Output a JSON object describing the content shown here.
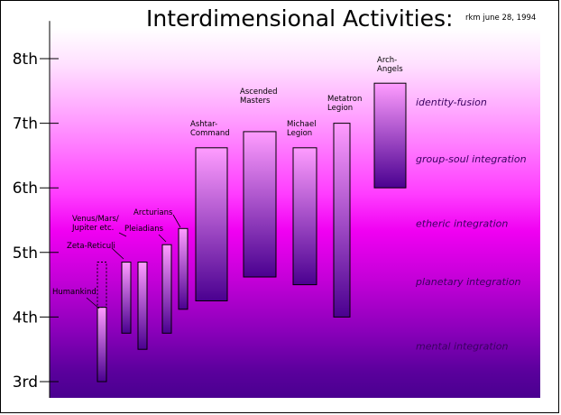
{
  "title": "Interdimensional Activities:",
  "credit": "rkm june 28, 1994",
  "colors": {
    "bar_top": "#ff9cff",
    "bar_bottom": "#4a0090",
    "outline": "#000000"
  },
  "chart_data": {
    "type": "range-bar",
    "y_axis": {
      "ticks": [
        "3rd",
        "4th",
        "5th",
        "6th",
        "7th",
        "8th"
      ],
      "tick_values": [
        3,
        4,
        5,
        6,
        7,
        8
      ],
      "range": [
        2.95,
        8.5
      ]
    },
    "bars": [
      {
        "label": "Humankind",
        "low": 3.0,
        "high": 4.15,
        "upper_dotted": 4.85
      },
      {
        "label": "Zeta-Reticuli",
        "low": 3.75,
        "high": 4.85
      },
      {
        "label": "Venus/Mars/\nJupiter etc.",
        "low": 3.5,
        "high": 4.85
      },
      {
        "label": "Pleiadians",
        "low": 3.75,
        "high": 5.12
      },
      {
        "label": "Arcturians",
        "low": 4.12,
        "high": 5.37
      },
      {
        "label": "Ashtar-\nCommand",
        "low": 4.25,
        "high": 6.62
      },
      {
        "label": "Ascended\nMasters",
        "low": 4.62,
        "high": 6.87
      },
      {
        "label": "Michael\nLegion",
        "low": 4.5,
        "high": 6.62
      },
      {
        "label": "Metatron\nLegion",
        "low": 4.0,
        "high": 7.0
      },
      {
        "label": "Arch-\nAngels",
        "low": 6.0,
        "high": 7.62
      }
    ],
    "bands": [
      {
        "label": "identity-fusion",
        "level": 7.33
      },
      {
        "label": "group-soul integration",
        "level": 6.45
      },
      {
        "label": "etheric integration",
        "level": 5.45
      },
      {
        "label": "planetary integration",
        "level": 4.55
      },
      {
        "label": "mental integration",
        "level": 3.55
      }
    ]
  }
}
